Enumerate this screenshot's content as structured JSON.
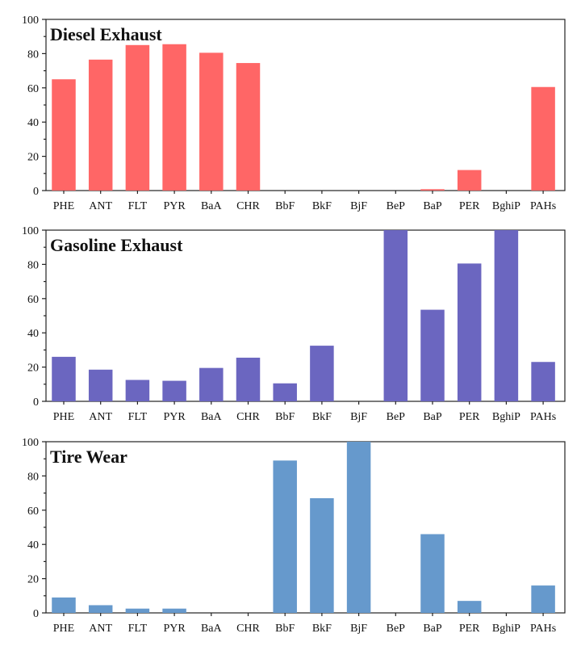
{
  "chart_data": [
    {
      "type": "bar",
      "title": "Diesel Exhaust",
      "categories": [
        "PHE",
        "ANT",
        "FLT",
        "PYR",
        "BaA",
        "CHR",
        "BbF",
        "BkF",
        "BjF",
        "BeP",
        "BaP",
        "PER",
        "BghiP",
        "PAHs"
      ],
      "values": [
        65,
        76.5,
        85,
        85.5,
        80.5,
        74.5,
        0,
        0,
        0,
        0,
        0.8,
        12,
        0,
        60.5
      ],
      "color": "#FF6666",
      "ylim": [
        0,
        100
      ],
      "yticks": [
        "0",
        "20",
        "40",
        "60",
        "80",
        "100"
      ],
      "xlabel": "",
      "ylabel": ""
    },
    {
      "type": "bar",
      "title": "Gasoline Exhaust",
      "categories": [
        "PHE",
        "ANT",
        "FLT",
        "PYR",
        "BaA",
        "CHR",
        "BbF",
        "BkF",
        "BjF",
        "BeP",
        "BaP",
        "PER",
        "BghiP",
        "PAHs"
      ],
      "values": [
        26,
        18.5,
        12.5,
        12,
        19.5,
        25.5,
        10.5,
        32.5,
        0,
        100,
        53.5,
        80.5,
        100,
        23
      ],
      "color": "#6B66C0",
      "ylim": [
        0,
        100
      ],
      "yticks": [
        "0",
        "20",
        "40",
        "60",
        "80",
        "100"
      ],
      "xlabel": "",
      "ylabel": ""
    },
    {
      "type": "bar",
      "title": "Tire Wear",
      "categories": [
        "PHE",
        "ANT",
        "FLT",
        "PYR",
        "BaA",
        "CHR",
        "BbF",
        "BkF",
        "BjF",
        "BeP",
        "BaP",
        "PER",
        "BghiP",
        "PAHs"
      ],
      "values": [
        9,
        4.5,
        2.5,
        2.5,
        0,
        0,
        89,
        67,
        100,
        0,
        46,
        7,
        0,
        16
      ],
      "color": "#6699CC",
      "ylim": [
        0,
        100
      ],
      "yticks": [
        "0",
        "20",
        "40",
        "60",
        "80",
        "100"
      ],
      "xlabel": "",
      "ylabel": ""
    }
  ]
}
